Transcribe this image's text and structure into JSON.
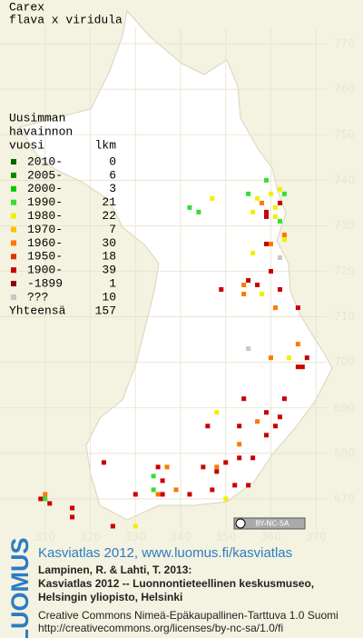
{
  "title": [
    "Carex",
    "flava x viridula"
  ],
  "map": {
    "xlim": [
      300,
      380
    ],
    "ylim": [
      660,
      780
    ],
    "xticks": [
      310,
      320,
      330,
      340,
      350,
      360,
      370
    ],
    "yticks": [
      670,
      680,
      690,
      700,
      710,
      720,
      730,
      740,
      750,
      760,
      770
    ],
    "points": [
      [
        359,
        740,
        3
      ],
      [
        362,
        738,
        4
      ],
      [
        355,
        737,
        3
      ],
      [
        360,
        737,
        4
      ],
      [
        363,
        737,
        3
      ],
      [
        358,
        735,
        6
      ],
      [
        359,
        733,
        8
      ],
      [
        361,
        734,
        4
      ],
      [
        356,
        733,
        4
      ],
      [
        359,
        732,
        8
      ],
      [
        361,
        732,
        4
      ],
      [
        362,
        735,
        8
      ],
      [
        357,
        736,
        4
      ],
      [
        362,
        731,
        3
      ],
      [
        342,
        734,
        3
      ],
      [
        344,
        733,
        3
      ],
      [
        347,
        736,
        4
      ],
      [
        359,
        726,
        8
      ],
      [
        360,
        726,
        6
      ],
      [
        363,
        727,
        4
      ],
      [
        363,
        728,
        6
      ],
      [
        356,
        724,
        4
      ],
      [
        362,
        723,
        10
      ],
      [
        360,
        720,
        8
      ],
      [
        355,
        718,
        8
      ],
      [
        357,
        717,
        8
      ],
      [
        354,
        717,
        6
      ],
      [
        349,
        716,
        8
      ],
      [
        354,
        715,
        6
      ],
      [
        358,
        715,
        4
      ],
      [
        362,
        716,
        8
      ],
      [
        361,
        712,
        6
      ],
      [
        366,
        712,
        8
      ],
      [
        366,
        704,
        6
      ],
      [
        355,
        703,
        10
      ],
      [
        360,
        701,
        6
      ],
      [
        364,
        701,
        4
      ],
      [
        368,
        701,
        8
      ],
      [
        366,
        699,
        8
      ],
      [
        367,
        699,
        8
      ],
      [
        354,
        692,
        8
      ],
      [
        363,
        692,
        8
      ],
      [
        359,
        689,
        8
      ],
      [
        357,
        687,
        6
      ],
      [
        348,
        689,
        4
      ],
      [
        362,
        688,
        8
      ],
      [
        353,
        686,
        8
      ],
      [
        346,
        686,
        8
      ],
      [
        353,
        682,
        6
      ],
      [
        359,
        684,
        8
      ],
      [
        361,
        686,
        8
      ],
      [
        353,
        679,
        8
      ],
      [
        356,
        679,
        8
      ],
      [
        350,
        678,
        8
      ],
      [
        348,
        677,
        6
      ],
      [
        348,
        676,
        8
      ],
      [
        345,
        677,
        8
      ],
      [
        352,
        673,
        8
      ],
      [
        355,
        673,
        8
      ],
      [
        347,
        672,
        8
      ],
      [
        342,
        671,
        8
      ],
      [
        339,
        672,
        6
      ],
      [
        335,
        677,
        8
      ],
      [
        337,
        677,
        6
      ],
      [
        334,
        675,
        3
      ],
      [
        336,
        674,
        8
      ],
      [
        334,
        672,
        3
      ],
      [
        335,
        671,
        6
      ],
      [
        336,
        671,
        8
      ],
      [
        350,
        670,
        4
      ],
      [
        330,
        671,
        8
      ],
      [
        323,
        678,
        8
      ],
      [
        330,
        664,
        4
      ],
      [
        325,
        664,
        8
      ],
      [
        310,
        671,
        6
      ],
      [
        310,
        670,
        3
      ],
      [
        309,
        670,
        8
      ],
      [
        311,
        669,
        8
      ],
      [
        316,
        668,
        8
      ],
      [
        316,
        666,
        8
      ]
    ]
  },
  "legend": {
    "title": [
      "Uusimman",
      "havainnon",
      "vuosi"
    ],
    "count_header": "lkm",
    "items": [
      {
        "label": "2010-",
        "color": "#006400",
        "count": 0
      },
      {
        "label": "2005-",
        "color": "#008c00",
        "count": 6
      },
      {
        "label": "2000-",
        "color": "#00c800",
        "count": 3
      },
      {
        "label": "1990-",
        "color": "#33e033",
        "count": 21
      },
      {
        "label": "1980-",
        "color": "#f0f000",
        "count": 22
      },
      {
        "label": "1970-",
        "color": "#ffc000",
        "count": 7
      },
      {
        "label": "1960-",
        "color": "#ff7800",
        "count": 30
      },
      {
        "label": "1950-",
        "color": "#e03000",
        "count": 18
      },
      {
        "label": "1900-",
        "color": "#c80000",
        "count": 39
      },
      {
        "label": "-1899",
        "color": "#900000",
        "count": 1
      },
      {
        "label": "???",
        "color": "#c8c8c8",
        "count": 10
      }
    ],
    "total_label": "Yhteensä",
    "total": 157
  },
  "badge": "BY-NC-SA",
  "footer": {
    "logo": "LUOMUS",
    "headline": "Kasviatlas 2012, www.luomus.fi/kasviatlas",
    "citation": [
      "Lampinen, R. & Lahti, T. 2013:",
      "Kasviatlas 2012 -- Luonnontieteellinen keskusmuseo,",
      "Helsingin yliopisto, Helsinki"
    ],
    "license": [
      "Creative Commons Nimeä-Epäkaupallinen-Tarttuva 1.0 Suomi",
      "http://creativecommons.org/licenses/by-nc-sa/1.0/fi"
    ]
  }
}
